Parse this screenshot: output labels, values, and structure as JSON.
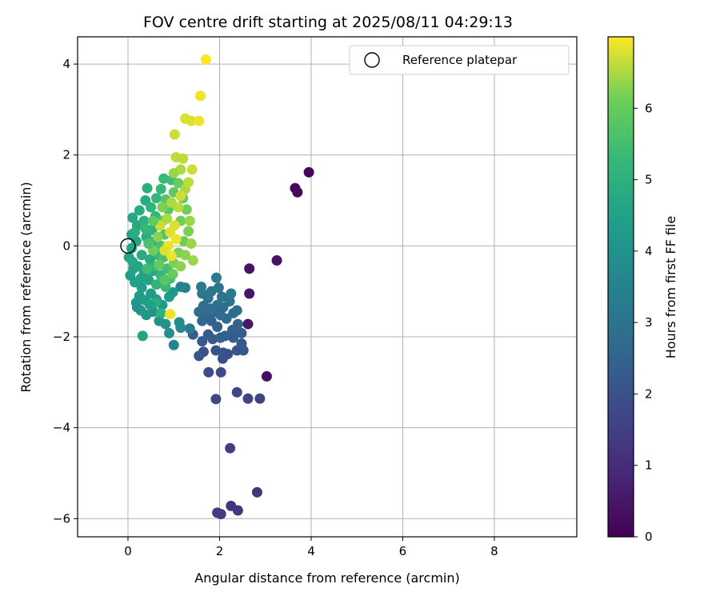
{
  "chart_data": {
    "type": "scatter",
    "title": "FOV centre drift starting at 2025/08/11 04:29:13",
    "xlabel": "Angular distance from reference (arcmin)",
    "ylabel": "Rotation from reference (arcmin)",
    "xlim": [
      -1.1,
      9.8
    ],
    "ylim": [
      -6.4,
      4.6
    ],
    "xticks": [
      0,
      2,
      4,
      6,
      8
    ],
    "yticks": [
      -6,
      -4,
      -2,
      0,
      2,
      4
    ],
    "grid": true,
    "legend": {
      "position": "top-right",
      "entries": [
        "Reference platepar"
      ]
    },
    "reference_point": {
      "x": 0,
      "y": 0,
      "label": "Reference platepar"
    },
    "colorbar": {
      "label": "Hours from first FF file",
      "range": [
        0,
        7
      ],
      "ticks": [
        0,
        1,
        2,
        3,
        4,
        5,
        6
      ],
      "colormap": "viridis"
    },
    "points": [
      {
        "x": 3.95,
        "y": 1.62,
        "c": 0.1
      },
      {
        "x": 3.65,
        "y": 1.27,
        "c": 0.15
      },
      {
        "x": 3.7,
        "y": 1.18,
        "c": 0.2
      },
      {
        "x": 3.25,
        "y": -0.32,
        "c": 0.35
      },
      {
        "x": 2.65,
        "y": -0.5,
        "c": 0.4
      },
      {
        "x": 2.65,
        "y": -1.05,
        "c": 0.45
      },
      {
        "x": 2.62,
        "y": -1.72,
        "c": 0.5
      },
      {
        "x": 3.03,
        "y": -2.87,
        "c": 0.3
      },
      {
        "x": 2.82,
        "y": -5.42,
        "c": 1.2
      },
      {
        "x": 2.4,
        "y": -5.82,
        "c": 1.3
      },
      {
        "x": 2.25,
        "y": -5.72,
        "c": 1.3
      },
      {
        "x": 1.95,
        "y": -5.87,
        "c": 1.4
      },
      {
        "x": 2.03,
        "y": -5.9,
        "c": 1.4
      },
      {
        "x": 2.23,
        "y": -4.45,
        "c": 1.5
      },
      {
        "x": 2.88,
        "y": -3.36,
        "c": 1.6
      },
      {
        "x": 2.62,
        "y": -3.36,
        "c": 1.6
      },
      {
        "x": 1.92,
        "y": -3.37,
        "c": 1.7
      },
      {
        "x": 2.38,
        "y": -3.22,
        "c": 1.7
      },
      {
        "x": 1.76,
        "y": -2.78,
        "c": 1.8
      },
      {
        "x": 2.03,
        "y": -2.78,
        "c": 1.8
      },
      {
        "x": 2.07,
        "y": -2.48,
        "c": 1.9
      },
      {
        "x": 2.18,
        "y": -2.38,
        "c": 1.9
      },
      {
        "x": 2.08,
        "y": -2.35,
        "c": 2.0
      },
      {
        "x": 1.92,
        "y": -2.3,
        "c": 2.0
      },
      {
        "x": 2.38,
        "y": -2.3,
        "c": 2.1
      },
      {
        "x": 2.52,
        "y": -2.3,
        "c": 2.1
      },
      {
        "x": 2.48,
        "y": -2.15,
        "c": 2.2
      },
      {
        "x": 1.65,
        "y": -2.33,
        "c": 2.0
      },
      {
        "x": 1.55,
        "y": -2.42,
        "c": 2.1
      },
      {
        "x": 1.42,
        "y": -1.95,
        "c": 2.3
      },
      {
        "x": 1.62,
        "y": -2.1,
        "c": 2.2
      },
      {
        "x": 1.75,
        "y": -1.95,
        "c": 2.3
      },
      {
        "x": 1.85,
        "y": -2.05,
        "c": 2.3
      },
      {
        "x": 2.02,
        "y": -2.02,
        "c": 2.4
      },
      {
        "x": 2.12,
        "y": -1.98,
        "c": 2.4
      },
      {
        "x": 2.28,
        "y": -1.85,
        "c": 2.5
      },
      {
        "x": 2.4,
        "y": -1.72,
        "c": 2.5
      },
      {
        "x": 1.95,
        "y": -1.78,
        "c": 2.4
      },
      {
        "x": 1.82,
        "y": -1.65,
        "c": 2.5
      },
      {
        "x": 1.62,
        "y": -1.65,
        "c": 2.6
      },
      {
        "x": 1.72,
        "y": -1.52,
        "c": 2.6
      },
      {
        "x": 1.88,
        "y": -1.45,
        "c": 2.6
      },
      {
        "x": 2.02,
        "y": -1.52,
        "c": 2.7
      },
      {
        "x": 2.15,
        "y": -1.6,
        "c": 2.7
      },
      {
        "x": 2.3,
        "y": -1.48,
        "c": 2.8
      },
      {
        "x": 2.38,
        "y": -1.42,
        "c": 2.8
      },
      {
        "x": 2.08,
        "y": -1.35,
        "c": 2.8
      },
      {
        "x": 1.95,
        "y": -1.3,
        "c": 2.9
      },
      {
        "x": 1.8,
        "y": -1.38,
        "c": 2.9
      },
      {
        "x": 1.65,
        "y": -1.32,
        "c": 2.9
      },
      {
        "x": 1.55,
        "y": -1.45,
        "c": 2.8
      },
      {
        "x": 2.22,
        "y": -1.22,
        "c": 3.0
      },
      {
        "x": 2.05,
        "y": -1.12,
        "c": 3.0
      },
      {
        "x": 1.75,
        "y": -1.15,
        "c": 3.0
      },
      {
        "x": 1.62,
        "y": -1.05,
        "c": 3.1
      },
      {
        "x": 1.82,
        "y": -1.0,
        "c": 3.1
      },
      {
        "x": 2.25,
        "y": -1.05,
        "c": 3.2
      },
      {
        "x": 1.98,
        "y": -0.92,
        "c": 3.1
      },
      {
        "x": 1.93,
        "y": -0.7,
        "c": 3.2
      },
      {
        "x": 1.6,
        "y": -0.9,
        "c": 3.3
      },
      {
        "x": 2.48,
        "y": -1.92,
        "c": 2.3
      },
      {
        "x": 2.3,
        "y": -2.02,
        "c": 2.3
      },
      {
        "x": 1.35,
        "y": -1.82,
        "c": 3.3
      },
      {
        "x": 1.25,
        "y": -0.92,
        "c": 3.4
      },
      {
        "x": 1.15,
        "y": -0.9,
        "c": 3.5
      },
      {
        "x": 1.0,
        "y": -2.18,
        "c": 3.6
      },
      {
        "x": 1.12,
        "y": -1.68,
        "c": 3.8
      },
      {
        "x": 1.15,
        "y": -1.8,
        "c": 3.8
      },
      {
        "x": 0.9,
        "y": -1.92,
        "c": 3.9
      },
      {
        "x": 0.82,
        "y": -1.72,
        "c": 4.0
      },
      {
        "x": 0.68,
        "y": -1.65,
        "c": 4.0
      },
      {
        "x": 0.55,
        "y": -1.45,
        "c": 4.1
      },
      {
        "x": 0.4,
        "y": -1.52,
        "c": 4.1
      },
      {
        "x": 0.28,
        "y": -1.42,
        "c": 4.2
      },
      {
        "x": 0.18,
        "y": -1.25,
        "c": 4.2
      },
      {
        "x": 0.25,
        "y": -1.1,
        "c": 4.2
      },
      {
        "x": 0.38,
        "y": -1.2,
        "c": 4.3
      },
      {
        "x": 0.5,
        "y": -1.05,
        "c": 4.3
      },
      {
        "x": 0.62,
        "y": -1.18,
        "c": 4.3
      },
      {
        "x": 0.75,
        "y": -1.3,
        "c": 4.2
      },
      {
        "x": 0.9,
        "y": -1.12,
        "c": 4.3
      },
      {
        "x": 0.98,
        "y": -1.02,
        "c": 4.2
      },
      {
        "x": 0.3,
        "y": -0.92,
        "c": 4.4
      },
      {
        "x": 0.15,
        "y": -0.8,
        "c": 4.4
      },
      {
        "x": 0.05,
        "y": -0.65,
        "c": 4.4
      },
      {
        "x": 0.12,
        "y": -0.5,
        "c": 4.5
      },
      {
        "x": 0.02,
        "y": -0.25,
        "c": 4.5
      },
      {
        "x": 0.08,
        "y": -0.05,
        "c": 4.6
      },
      {
        "x": 0.18,
        "y": 0.1,
        "c": 4.6
      },
      {
        "x": 0.08,
        "y": 0.25,
        "c": 4.6
      },
      {
        "x": 0.2,
        "y": 0.45,
        "c": 4.7
      },
      {
        "x": 0.1,
        "y": 0.62,
        "c": 4.7
      },
      {
        "x": 0.25,
        "y": 0.78,
        "c": 4.8
      },
      {
        "x": 0.38,
        "y": 1.0,
        "c": 4.8
      },
      {
        "x": 0.42,
        "y": 1.27,
        "c": 4.9
      },
      {
        "x": 0.32,
        "y": -1.98,
        "c": 4.5
      },
      {
        "x": 0.35,
        "y": -0.6,
        "c": 4.6
      },
      {
        "x": 0.45,
        "y": -0.75,
        "c": 4.5
      },
      {
        "x": 0.55,
        "y": -0.55,
        "c": 4.7
      },
      {
        "x": 0.48,
        "y": -0.3,
        "c": 4.8
      },
      {
        "x": 0.3,
        "y": -0.2,
        "c": 4.8
      },
      {
        "x": 0.22,
        "y": -0.45,
        "c": 4.6
      },
      {
        "x": 0.4,
        "y": 0.2,
        "c": 4.9
      },
      {
        "x": 0.52,
        "y": 0.35,
        "c": 5.0
      },
      {
        "x": 0.35,
        "y": 0.55,
        "c": 5.0
      },
      {
        "x": 0.6,
        "y": 0.65,
        "c": 5.1
      },
      {
        "x": 0.5,
        "y": 0.85,
        "c": 5.1
      },
      {
        "x": 0.62,
        "y": 1.05,
        "c": 5.2
      },
      {
        "x": 0.72,
        "y": 1.25,
        "c": 5.3
      },
      {
        "x": 0.78,
        "y": 1.48,
        "c": 5.3
      },
      {
        "x": 0.95,
        "y": 1.45,
        "c": 5.4
      },
      {
        "x": 0.68,
        "y": 0.45,
        "c": 5.2
      },
      {
        "x": 0.58,
        "y": 0.1,
        "c": 5.2
      },
      {
        "x": 0.65,
        "y": -0.2,
        "c": 5.3
      },
      {
        "x": 0.6,
        "y": -0.45,
        "c": 5.3
      },
      {
        "x": 0.72,
        "y": -0.65,
        "c": 5.2
      },
      {
        "x": 0.62,
        "y": -0.85,
        "c": 5.1
      },
      {
        "x": 0.82,
        "y": -0.9,
        "c": 5.3
      },
      {
        "x": 0.92,
        "y": -0.72,
        "c": 5.4
      },
      {
        "x": 0.85,
        "y": -0.5,
        "c": 5.5
      },
      {
        "x": 0.78,
        "y": -0.25,
        "c": 5.6
      },
      {
        "x": 0.72,
        "y": 0.0,
        "c": 5.6
      },
      {
        "x": 0.8,
        "y": 0.25,
        "c": 5.7
      },
      {
        "x": 0.75,
        "y": 0.55,
        "c": 5.7
      },
      {
        "x": 0.88,
        "y": 0.8,
        "c": 5.8
      },
      {
        "x": 0.82,
        "y": 1.02,
        "c": 5.8
      },
      {
        "x": 1.0,
        "y": 1.18,
        "c": 5.9
      },
      {
        "x": 1.1,
        "y": 1.38,
        "c": 6.0
      },
      {
        "x": 1.2,
        "y": 1.05,
        "c": 6.0
      },
      {
        "x": 1.28,
        "y": 0.8,
        "c": 6.1
      },
      {
        "x": 1.15,
        "y": 0.55,
        "c": 6.1
      },
      {
        "x": 1.32,
        "y": 0.32,
        "c": 6.2
      },
      {
        "x": 1.22,
        "y": 0.1,
        "c": 6.1
      },
      {
        "x": 1.1,
        "y": -0.15,
        "c": 6.2
      },
      {
        "x": 1.0,
        "y": -0.38,
        "c": 6.2
      },
      {
        "x": 0.98,
        "y": -0.62,
        "c": 6.0
      },
      {
        "x": 1.15,
        "y": -0.45,
        "c": 6.3
      },
      {
        "x": 1.25,
        "y": -0.2,
        "c": 6.3
      },
      {
        "x": 1.38,
        "y": 0.05,
        "c": 6.4
      },
      {
        "x": 1.42,
        "y": -0.32,
        "c": 6.4
      },
      {
        "x": 1.35,
        "y": 0.55,
        "c": 6.4
      },
      {
        "x": 1.25,
        "y": 1.25,
        "c": 6.5
      },
      {
        "x": 1.15,
        "y": 1.68,
        "c": 6.5
      },
      {
        "x": 1.32,
        "y": 1.4,
        "c": 6.6
      },
      {
        "x": 1.05,
        "y": 1.95,
        "c": 6.6
      },
      {
        "x": 1.2,
        "y": 1.92,
        "c": 6.6
      },
      {
        "x": 1.4,
        "y": 1.68,
        "c": 6.7
      },
      {
        "x": 1.02,
        "y": 2.45,
        "c": 6.7
      },
      {
        "x": 1.25,
        "y": 2.8,
        "c": 6.8
      },
      {
        "x": 1.38,
        "y": 2.75,
        "c": 6.8
      },
      {
        "x": 1.55,
        "y": 2.75,
        "c": 6.9
      },
      {
        "x": 1.58,
        "y": 3.3,
        "c": 6.9
      },
      {
        "x": 1.7,
        "y": 4.1,
        "c": 7.0
      },
      {
        "x": 0.92,
        "y": 0.3,
        "c": 6.8
      },
      {
        "x": 1.02,
        "y": 0.45,
        "c": 6.8
      },
      {
        "x": 0.88,
        "y": 0.0,
        "c": 6.9
      },
      {
        "x": 0.95,
        "y": -0.22,
        "c": 6.9
      },
      {
        "x": 1.05,
        "y": 0.15,
        "c": 6.9
      },
      {
        "x": 0.8,
        "y": -0.1,
        "c": 6.8
      },
      {
        "x": 0.7,
        "y": 0.45,
        "c": 6.7
      },
      {
        "x": 1.1,
        "y": 0.85,
        "c": 6.6
      },
      {
        "x": 0.95,
        "y": 0.95,
        "c": 6.5
      },
      {
        "x": 0.85,
        "y": 0.6,
        "c": 6.5
      },
      {
        "x": 0.65,
        "y": 0.2,
        "c": 6.3
      },
      {
        "x": 0.55,
        "y": -0.1,
        "c": 6.1
      },
      {
        "x": 0.68,
        "y": -0.42,
        "c": 6.0
      },
      {
        "x": 0.8,
        "y": -0.75,
        "c": 5.8
      },
      {
        "x": 0.45,
        "y": 0.05,
        "c": 5.6
      },
      {
        "x": 0.42,
        "y": -0.5,
        "c": 5.4
      },
      {
        "x": 0.55,
        "y": 0.55,
        "c": 5.9
      },
      {
        "x": 0.75,
        "y": 0.85,
        "c": 6.2
      },
      {
        "x": 1.0,
        "y": 1.6,
        "c": 6.4
      },
      {
        "x": 1.15,
        "y": 1.1,
        "c": 6.7
      },
      {
        "x": 0.72,
        "y": -1.48,
        "c": 5.0
      },
      {
        "x": 0.6,
        "y": -1.25,
        "c": 4.9
      },
      {
        "x": 0.92,
        "y": -1.5,
        "c": 6.9
      },
      {
        "x": 0.38,
        "y": 0.38,
        "c": 5.3
      },
      {
        "x": 0.28,
        "y": -0.72,
        "c": 4.5
      },
      {
        "x": 0.2,
        "y": -1.35,
        "c": 4.0
      },
      {
        "x": 0.48,
        "y": -1.3,
        "c": 4.4
      },
      {
        "x": 0.1,
        "y": -0.35,
        "c": 4.7
      },
      {
        "x": 0.15,
        "y": 0.3,
        "c": 4.9
      }
    ]
  }
}
